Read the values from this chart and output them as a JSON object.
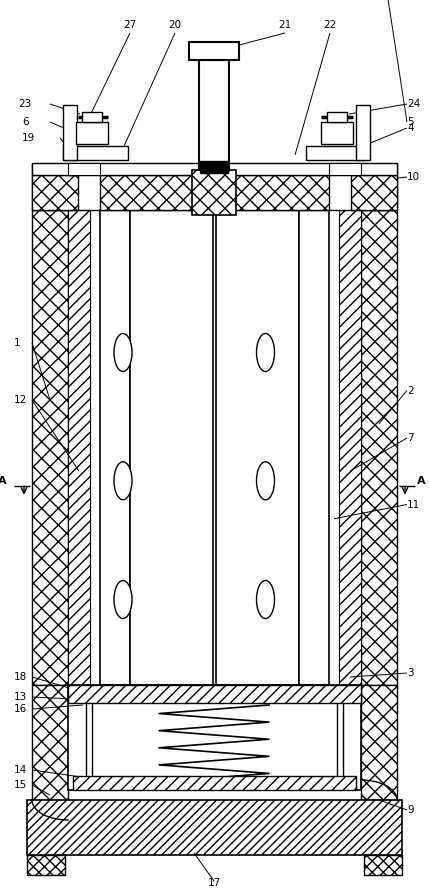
{
  "fig_width": 4.29,
  "fig_height": 8.9,
  "dpi": 100,
  "bg_color": "#ffffff"
}
